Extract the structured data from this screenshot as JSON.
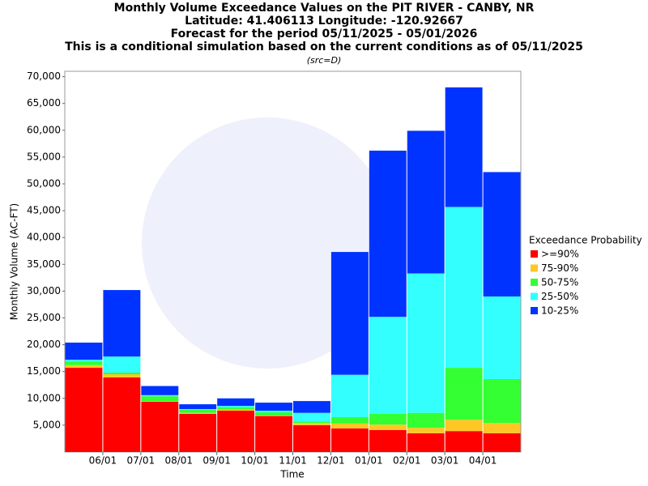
{
  "chart_data": {
    "type": "stacked_bar",
    "title": [
      "Monthly Volume Exceedance Values on the PIT RIVER - CANBY, NR",
      "Latitude: 41.406113 Longitude: -120.92667",
      "Forecast for the period 05/11/2025 - 05/01/2026",
      "This is a conditional simulation based on the current conditions as of 05/11/2025"
    ],
    "subtitle": "(src=D)",
    "x_label": "Time",
    "y_label": "Monthly Volume (AC-FT)",
    "legend_title": "Exceedance Probability",
    "categories": [
      null,
      "06/01",
      "07/01",
      "08/01",
      "09/01",
      "10/01",
      "11/01",
      "12/01",
      "01/01",
      "02/01",
      "03/01",
      "04/01"
    ],
    "series": [
      {
        "name": ">=90%",
        "color": "#ff0000",
        "values": [
          15700,
          13900,
          9400,
          7100,
          7700,
          6700,
          5000,
          4400,
          4100,
          3500,
          3900,
          3500
        ]
      },
      {
        "name": "75-90%",
        "color": "#ffc726",
        "values": [
          500,
          600,
          100,
          200,
          200,
          100,
          400,
          900,
          1000,
          1000,
          2100,
          1900
        ]
      },
      {
        "name": "50-75%",
        "color": "#33ff33",
        "values": [
          700,
          300,
          900,
          600,
          400,
          600,
          300,
          1200,
          2000,
          2800,
          9700,
          8200
        ]
      },
      {
        "name": "25-50%",
        "color": "#33ffff",
        "values": [
          300,
          3000,
          200,
          100,
          300,
          300,
          1600,
          7900,
          18100,
          26000,
          30000,
          15400
        ]
      },
      {
        "name": "10-25%",
        "color": "#0033ff",
        "values": [
          3200,
          12400,
          1700,
          900,
          1400,
          1500,
          2200,
          22900,
          31000,
          26600,
          22300,
          23200
        ]
      }
    ],
    "ylim": [
      0,
      71000
    ],
    "yticks": [
      {
        "value": 5000,
        "label": "5,000"
      },
      {
        "value": 10000,
        "label": "10,000"
      },
      {
        "value": 15000,
        "label": "15,000"
      },
      {
        "value": 20000,
        "label": "20,000"
      },
      {
        "value": 25000,
        "label": "25,000"
      },
      {
        "value": 30000,
        "label": "30,000"
      },
      {
        "value": 35000,
        "label": "35,000"
      },
      {
        "value": 40000,
        "label": "40,000"
      },
      {
        "value": 45000,
        "label": "45,000"
      },
      {
        "value": 50000,
        "label": "50,000"
      },
      {
        "value": 55000,
        "label": "55,000"
      },
      {
        "value": 60000,
        "label": "60,000"
      },
      {
        "value": 65000,
        "label": "65,000"
      },
      {
        "value": 70000,
        "label": "70,000"
      }
    ],
    "legend": "right"
  }
}
